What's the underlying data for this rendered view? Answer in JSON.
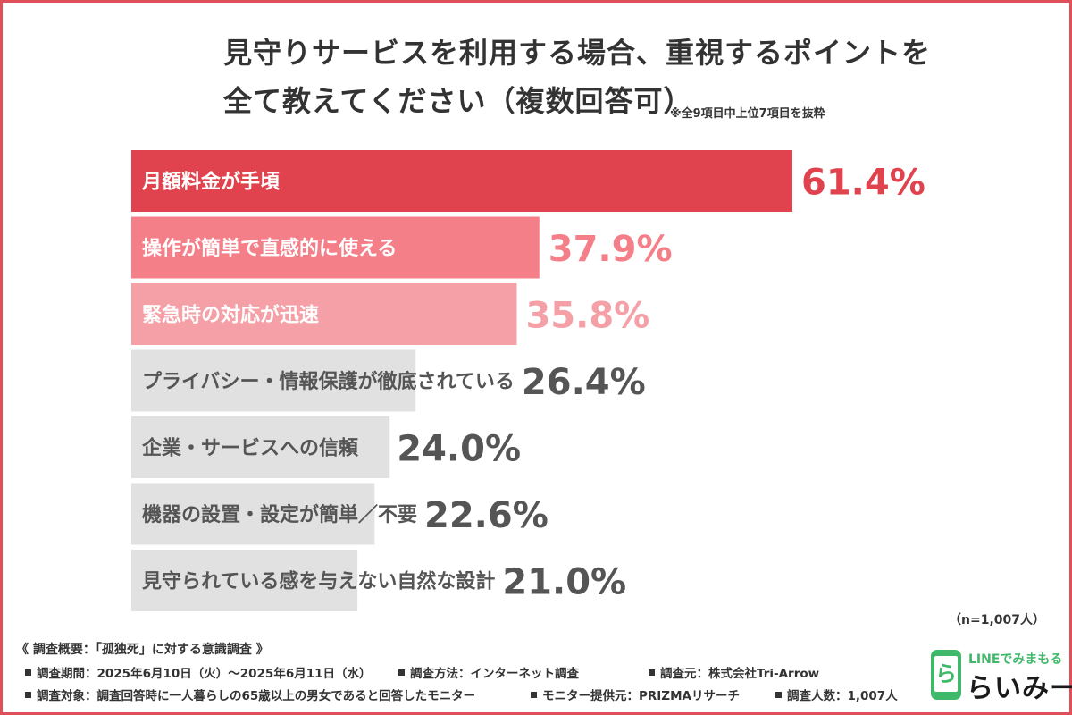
{
  "header": {
    "title_line1": "見守りサービスを利用する場合、重視するポイントを",
    "title_line2": "全て教えてください（複数回答可）",
    "note": "※全9項目中上位7項目を抜粋"
  },
  "chart_data": {
    "type": "bar",
    "orientation": "horizontal",
    "categories": [
      "月額料金が手頃",
      "操作が簡単で直感的に使える",
      "緊急時の対応が迅速",
      "プライバシー・情報保護が徹底されている",
      "企業・サービスへの信頼",
      "機器の設置・設定が簡単／不要",
      "見守られている感を与えない自然な設計"
    ],
    "values": [
      61.4,
      37.9,
      35.8,
      26.4,
      24.0,
      22.6,
      21.0
    ],
    "value_labels": [
      "61.4%",
      "37.9%",
      "35.8%",
      "26.4%",
      "24.0%",
      "22.6%",
      "21.0%"
    ],
    "unit": "%",
    "title": "見守りサービスを利用する場合、重視するポイントを全て教えてください（複数回答可）",
    "xlabel": "",
    "ylabel": "",
    "xlim": [
      0,
      100
    ],
    "grid": false,
    "legend": "none",
    "colors": {
      "bar_1": "#e0434d",
      "bar_2": "#f47f88",
      "bar_3": "#f4a0a6",
      "bar_other": "#e1e1e1",
      "label_on_color": "#ffffff",
      "label_on_gray": "#555555",
      "value_1": "#e0434d",
      "value_2": "#f47f88",
      "value_3": "#f4a0a6",
      "value_other": "#555555"
    }
  },
  "sample_size": "（n=1,007人）",
  "footer": {
    "heading": "《 調査概要：「孤独死」に対する意識調査 》",
    "period": "調査期間：2025年6月10日（火）～2025年6月11日（水）",
    "method": "調査方法：インターネット調査",
    "organizer": "調査元：株式会社Tri-Arrow",
    "target": "調査対象：調査回答時に一人暮らしの65歳以上の男女であると回答したモニター",
    "provider": "モニター提供元：PRIZMAリサーチ",
    "respondents": "調査人数：1,007人"
  },
  "logo": {
    "tagline": "LINEでみまもる",
    "name": "らいみー",
    "mark": "ら",
    "color": "#3fb86a"
  }
}
